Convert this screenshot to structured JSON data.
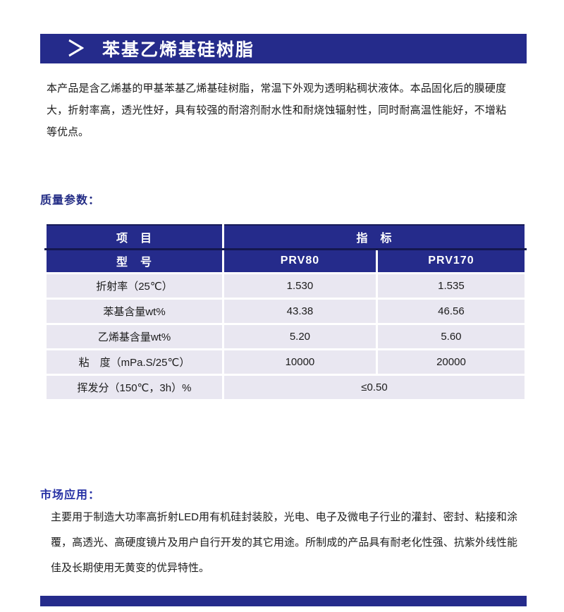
{
  "page": {
    "title_bar": {
      "arrow": "＞",
      "title": "苯基乙烯基硅树脂"
    },
    "description": "本产品是含乙烯基的甲基苯基乙烯基硅树脂，常温下外观为透明粘稠状液体。本品固化后的膜硬度大，折射率高，透光性好，具有较强的耐溶剂耐水性和耐烧蚀辐射性，同时耐高温性能好，不增粘等优点。",
    "quality_section_label": "质量参数：",
    "market_section_label": "市场应用：",
    "market_text": "主要用于制造大功率高折射LED用有机硅封装胶，光电、电子及微电子行业的灌封、密封、粘接和涂覆，高透光、高硬度镜片及用户自行开发的其它用途。所制成的产品具有耐老化性强、抗紫外线性能佳及长期使用无黄变的优异特性。",
    "colors": {
      "navy": "#252b8b",
      "header_divider": "#14174f",
      "row_background": "#e9e7f1"
    }
  },
  "table": {
    "header": {
      "item": "项　目",
      "indicator": "指　标",
      "model": "型　号",
      "models": [
        "PRV80",
        "PRV170"
      ]
    },
    "rows": [
      {
        "label": "折射率（25℃）",
        "prv80": "1.530",
        "prv170": "1.535"
      },
      {
        "label": "苯基含量wt%",
        "prv80": "43.38",
        "prv170": "46.56"
      },
      {
        "label": "乙烯基含量wt%",
        "prv80": "5.20",
        "prv170": "5.60"
      },
      {
        "label": "粘　度（mPa.S/25℃）",
        "prv80": "10000",
        "prv170": "20000"
      },
      {
        "label": "挥发分（150℃，3h）%",
        "value": "≤0.50"
      }
    ]
  }
}
